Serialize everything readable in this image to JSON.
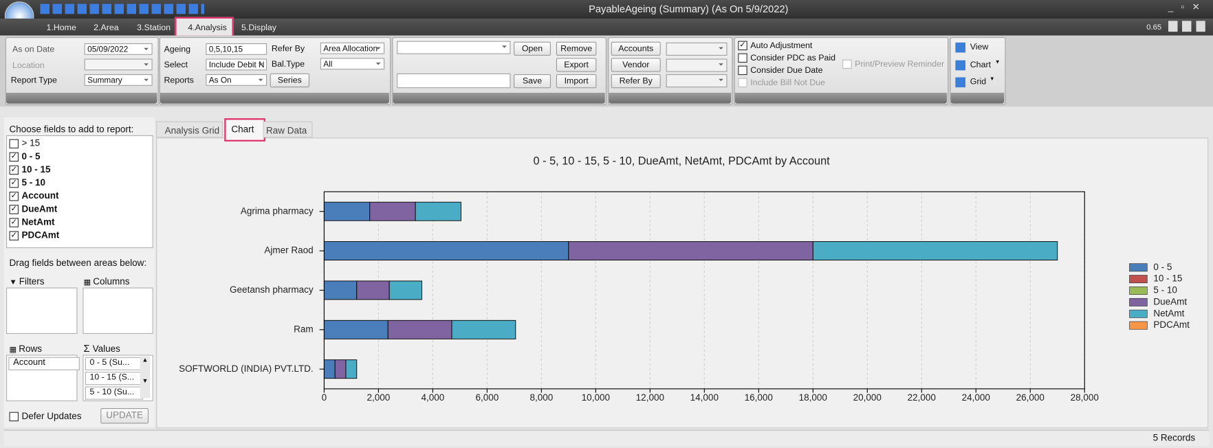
{
  "window": {
    "title": "PayableAgeing (Summary) (As On 5/9/2022)",
    "version": "0.65"
  },
  "menu_tabs": [
    "1.Home",
    "2.Area",
    "3.Station",
    "4.Analysis",
    "5.Display"
  ],
  "ribbon": {
    "as_on_date": {
      "label": "As on Date",
      "value": "05/09/2022"
    },
    "location": {
      "label": "Location"
    },
    "report_type": {
      "label": "Report Type",
      "value": "Summary"
    },
    "ageing": {
      "label": "Ageing",
      "value": "0,5,10,15"
    },
    "select": {
      "label": "Select",
      "value": "Include Debit N"
    },
    "reports": {
      "label": "Reports",
      "value": "As On"
    },
    "series_button": "Series",
    "refer_by": {
      "label": "Refer By",
      "value": "Area Allocation"
    },
    "bal_type": {
      "label": "Bal.Type",
      "value": "All"
    },
    "file_buttons": [
      "Open",
      "Remove",
      "Export",
      "Save",
      "Import"
    ],
    "filter_buttons": [
      "Accounts",
      "Vendor",
      "Refer By"
    ],
    "options": [
      {
        "label": "Auto Adjustment",
        "checked": true,
        "disabled": false
      },
      {
        "label": "Consider PDC as Paid",
        "checked": false,
        "disabled": false
      },
      {
        "label": "Consider Due Date",
        "checked": false,
        "disabled": false
      },
      {
        "label": "Include Bill Not Due",
        "checked": false,
        "disabled": true
      }
    ],
    "print_preview": "Print/Preview Reminder",
    "view_menu": [
      "View",
      "Chart",
      "Grid"
    ]
  },
  "field_list": {
    "title": "Choose fields to add to report:",
    "fields": [
      {
        "label": "> 15",
        "checked": false
      },
      {
        "label": "0 - 5",
        "checked": true
      },
      {
        "label": "10 - 15",
        "checked": true
      },
      {
        "label": "5 - 10",
        "checked": true
      },
      {
        "label": "Account",
        "checked": true
      },
      {
        "label": "DueAmt",
        "checked": true
      },
      {
        "label": "NetAmt",
        "checked": true
      },
      {
        "label": "PDCAmt",
        "checked": true
      }
    ],
    "drag_hint": "Drag fields between areas below:",
    "filters": "Filters",
    "columns": "Columns",
    "rows": {
      "title": "Rows",
      "items": [
        "Account"
      ]
    },
    "values": {
      "title": "Values",
      "items": [
        "0 - 5 (Su...",
        "10 - 15 (S...",
        "5 - 10 (Su..."
      ]
    },
    "defer_updates": "Defer Updates",
    "update_button": "UPDATE"
  },
  "report_tabs": [
    "Analysis Grid",
    "Chart",
    "Raw Data"
  ],
  "chart_data": {
    "type": "bar",
    "orientation": "horizontal",
    "stacked": true,
    "title": "0 - 5, 10 - 15, 5 - 10, DueAmt, NetAmt, PDCAmt by Account",
    "categories": [
      "Agrima pharmacy",
      "Ajmer Raod",
      "Geetansh pharmacy",
      "Ram",
      "SOFTWORLD (INDIA) PVT.LTD."
    ],
    "series": [
      {
        "name": "0 - 5",
        "color": "#4a7ebb",
        "values": [
          1680,
          9000,
          1200,
          2350,
          400
        ]
      },
      {
        "name": "10 - 15",
        "color": "#c0504d",
        "values": [
          0,
          0,
          0,
          0,
          0
        ]
      },
      {
        "name": "5 - 10",
        "color": "#9bbb59",
        "values": [
          0,
          0,
          0,
          0,
          0
        ]
      },
      {
        "name": "DueAmt",
        "color": "#8064a2",
        "values": [
          1680,
          9000,
          1200,
          2350,
          400
        ]
      },
      {
        "name": "NetAmt",
        "color": "#4bacc6",
        "values": [
          1680,
          9000,
          1200,
          2350,
          400
        ]
      },
      {
        "name": "PDCAmt",
        "color": "#f79646",
        "values": [
          0,
          0,
          0,
          0,
          0
        ]
      }
    ],
    "xlim": [
      0,
      28000
    ],
    "xticks": [
      0,
      {
        "value": 2000,
        "label": "2,000"
      },
      {
        "value": 4000,
        "label": "4,000"
      },
      {
        "value": 6000,
        "label": "6,000"
      },
      {
        "value": 8000,
        "label": "8,000"
      },
      {
        "value": 10000,
        "label": "10,000"
      },
      {
        "value": 12000,
        "label": "12,000"
      },
      {
        "value": 14000,
        "label": "14,000"
      },
      {
        "value": 16000,
        "label": "16,000"
      },
      {
        "value": 18000,
        "label": "18,000"
      },
      {
        "value": 20000,
        "label": "20,000"
      },
      {
        "value": 22000,
        "label": "22,000"
      },
      {
        "value": 24000,
        "label": "24,000"
      },
      {
        "value": 26000,
        "label": "26,000"
      },
      {
        "value": 28000,
        "label": "28,000"
      }
    ],
    "grid": true,
    "legend": "right"
  },
  "status": "5 Records"
}
